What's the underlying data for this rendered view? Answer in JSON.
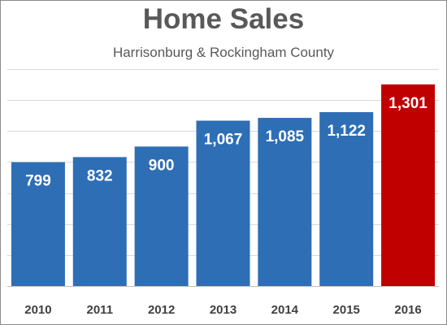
{
  "chart_data": {
    "type": "bar",
    "title": "Home Sales",
    "subtitle": "Harrisonburg & Rockingham County",
    "categories": [
      "2010",
      "2011",
      "2012",
      "2013",
      "2014",
      "2015",
      "2016"
    ],
    "values": [
      799,
      832,
      900,
      1067,
      1085,
      1122,
      1301
    ],
    "value_labels": [
      "799",
      "832",
      "900",
      "1,067",
      "1,085",
      "1,122",
      "1,301"
    ],
    "ylim": [
      0,
      1400
    ],
    "grid": true,
    "colors": {
      "default_bar": "#2e6eb5",
      "highlight_bar": "#c00000",
      "highlight_index": 6
    }
  }
}
